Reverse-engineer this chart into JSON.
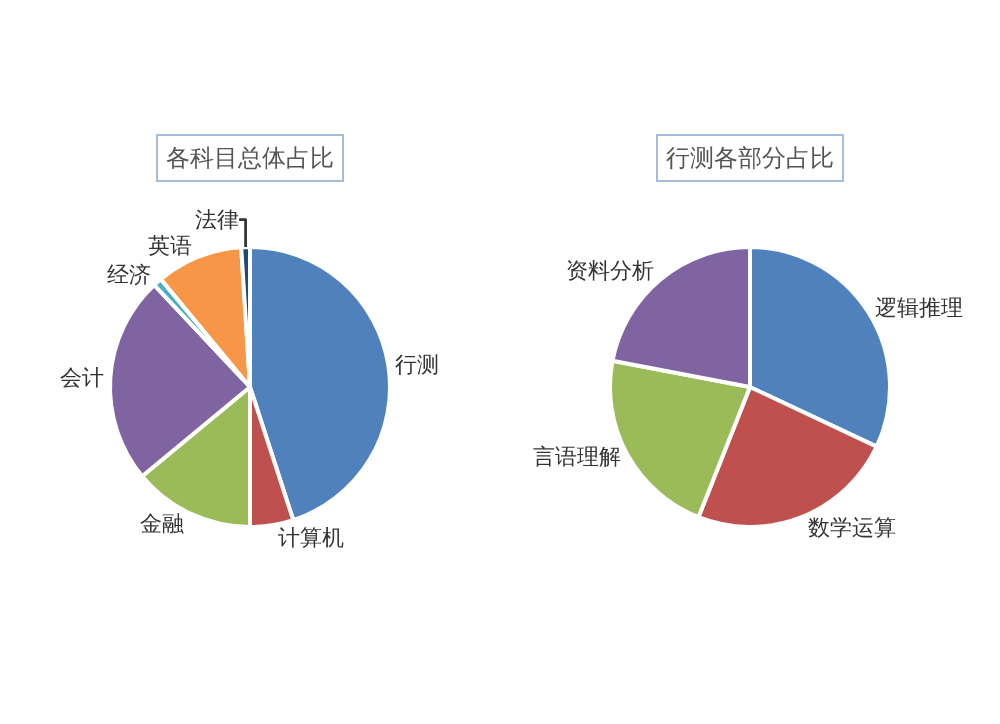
{
  "chart_data": [
    {
      "type": "pie",
      "title": "各科目总体占比",
      "categories": [
        "行测",
        "计算机",
        "金融",
        "会计",
        "经济",
        "英语",
        "法律"
      ],
      "values": [
        45,
        5,
        14,
        24,
        1,
        10,
        1
      ],
      "colors": [
        "#4f81bd",
        "#c0504d",
        "#9bbb59",
        "#8064a2",
        "#4bacc6",
        "#f79646",
        "#1f497d"
      ],
      "legend": false
    },
    {
      "type": "pie",
      "title": "行测各部分占比",
      "categories": [
        "逻辑推理",
        "数学运算",
        "言语理解",
        "资料分析"
      ],
      "values": [
        32,
        24,
        22,
        22
      ],
      "colors": [
        "#4f81bd",
        "#c0504d",
        "#9bbb59",
        "#8064a2"
      ],
      "legend": false
    }
  ]
}
